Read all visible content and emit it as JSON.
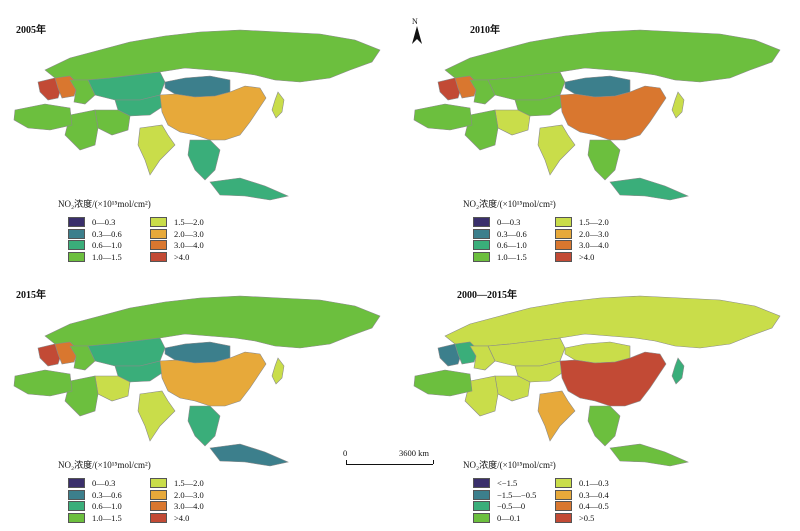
{
  "legend_common": {
    "title": "NO₂浓度/(×10¹⁵mol/cm²)",
    "items": [
      {
        "label": "0—0.3",
        "color": "#3a2f6b"
      },
      {
        "label": "0.3—0.6",
        "color": "#3c7f8c"
      },
      {
        "label": "0.6—1.0",
        "color": "#3aae7a"
      },
      {
        "label": "1.0—1.5",
        "color": "#6cbf3e"
      },
      {
        "label": "1.5—2.0",
        "color": "#c9dd4a"
      },
      {
        "label": "2.0—3.0",
        "color": "#e7a93a"
      },
      {
        "label": "3.0—4.0",
        "color": "#d9772f"
      },
      {
        "label": ">4.0",
        "color": "#c24a35"
      }
    ]
  },
  "legend_change": {
    "title": "NO₂浓度/(×10¹⁵mol/cm²)",
    "items": [
      {
        "label": "<−1.5",
        "color": "#3a2f6b"
      },
      {
        "label": "−1.5—−0.5",
        "color": "#3c7f8c"
      },
      {
        "label": "−0.5—0",
        "color": "#3aae7a"
      },
      {
        "label": "0—0.1",
        "color": "#6cbf3e"
      },
      {
        "label": "0.1—0.3",
        "color": "#c9dd4a"
      },
      {
        "label": "0.3—0.4",
        "color": "#e7a93a"
      },
      {
        "label": "0.4—0.5",
        "color": "#d9772f"
      },
      {
        "label": ">0.5",
        "color": "#c24a35"
      }
    ]
  },
  "panels": [
    {
      "title": "2005年",
      "colors": {
        "russia": "#6cbf3e",
        "mongolia": "#3c7f8c",
        "china": "#e7a93a",
        "kazakhstan": "#3aae7a",
        "central_asia": "#3aae7a",
        "middle_east": "#6cbf3e",
        "iran": "#6cbf3e",
        "india": "#c9dd4a",
        "se_asia": "#3aae7a",
        "europe_west": "#c24a35",
        "europe_central": "#d9772f",
        "europe_east": "#6cbf3e",
        "north_africa": "#6cbf3e",
        "japan": "#c9dd4a",
        "islands": "#3aae7a"
      }
    },
    {
      "title": "2010年",
      "colors": {
        "russia": "#6cbf3e",
        "mongolia": "#3c7f8c",
        "china": "#d9772f",
        "kazakhstan": "#6cbf3e",
        "central_asia": "#6cbf3e",
        "middle_east": "#6cbf3e",
        "iran": "#c9dd4a",
        "india": "#c9dd4a",
        "se_asia": "#6cbf3e",
        "europe_west": "#c24a35",
        "europe_central": "#d9772f",
        "europe_east": "#6cbf3e",
        "north_africa": "#6cbf3e",
        "japan": "#c9dd4a",
        "islands": "#3aae7a"
      }
    },
    {
      "title": "2015年",
      "colors": {
        "russia": "#6cbf3e",
        "mongolia": "#3c7f8c",
        "china": "#e7a93a",
        "kazakhstan": "#3aae7a",
        "central_asia": "#3aae7a",
        "middle_east": "#6cbf3e",
        "iran": "#c9dd4a",
        "india": "#c9dd4a",
        "se_asia": "#3aae7a",
        "europe_west": "#c24a35",
        "europe_central": "#d9772f",
        "europe_east": "#6cbf3e",
        "north_africa": "#6cbf3e",
        "japan": "#c9dd4a",
        "islands": "#3c7f8c"
      }
    },
    {
      "title": "2000—2015年",
      "colors": {
        "russia": "#c9dd4a",
        "mongolia": "#c9dd4a",
        "china": "#c24a35",
        "kazakhstan": "#c9dd4a",
        "central_asia": "#c9dd4a",
        "middle_east": "#c9dd4a",
        "iran": "#c9dd4a",
        "india": "#e7a93a",
        "se_asia": "#6cbf3e",
        "europe_west": "#3c7f8c",
        "europe_central": "#3aae7a",
        "europe_east": "#c9dd4a",
        "north_africa": "#6cbf3e",
        "japan": "#3aae7a",
        "islands": "#6cbf3e"
      }
    }
  ],
  "north_label": "N",
  "scale": {
    "zero": "0",
    "distance": "3600 km"
  }
}
